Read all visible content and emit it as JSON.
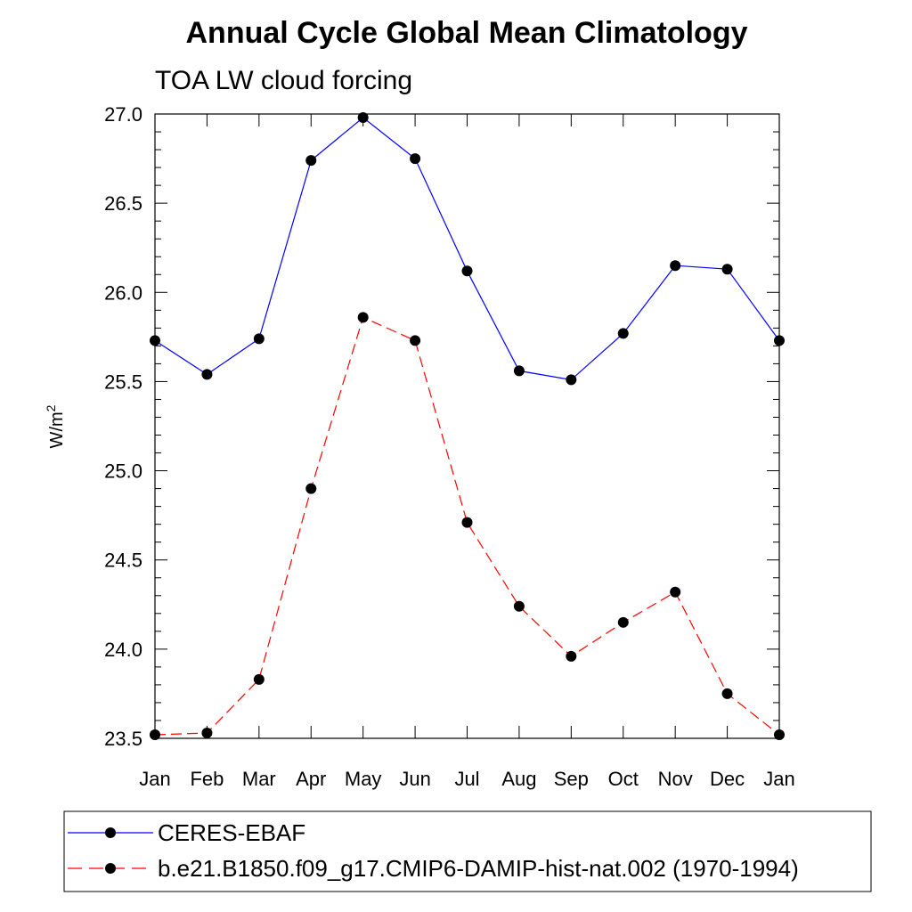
{
  "chart_data": {
    "type": "line",
    "title": "Annual Cycle Global Mean Climatology",
    "subtitle": "TOA LW cloud forcing",
    "ylabel_base": "W/m",
    "ylabel_sup": "2",
    "xlabel": "",
    "categories": [
      "Jan",
      "Feb",
      "Mar",
      "Apr",
      "May",
      "Jun",
      "Jul",
      "Aug",
      "Sep",
      "Oct",
      "Nov",
      "Dec",
      "Jan"
    ],
    "ylim": [
      23.5,
      27.0
    ],
    "yticks": [
      23.5,
      24.0,
      24.5,
      25.0,
      25.5,
      26.0,
      26.5,
      27.0
    ],
    "ytick_labels": [
      "23.5",
      "24.0",
      "24.5",
      "25.0",
      "25.5",
      "26.0",
      "26.5",
      "27.0"
    ],
    "grid": false,
    "legend_position": "bottom",
    "series": [
      {
        "name": "CERES-EBAF",
        "color": "#0000ff",
        "line_style": "solid",
        "marker": "filled-circle",
        "values": [
          25.73,
          25.54,
          25.74,
          26.74,
          26.98,
          26.75,
          26.12,
          25.56,
          25.51,
          25.77,
          26.15,
          26.13,
          25.73
        ]
      },
      {
        "name": "b.e21.B1850.f09_g17.CMIP6-DAMIP-hist-nat.002 (1970-1994)",
        "color": "#ff0000",
        "line_style": "dashed",
        "marker": "filled-circle",
        "values": [
          23.52,
          23.53,
          23.83,
          24.9,
          25.86,
          25.73,
          24.71,
          24.24,
          23.96,
          24.15,
          24.32,
          23.75,
          23.52
        ]
      }
    ]
  }
}
